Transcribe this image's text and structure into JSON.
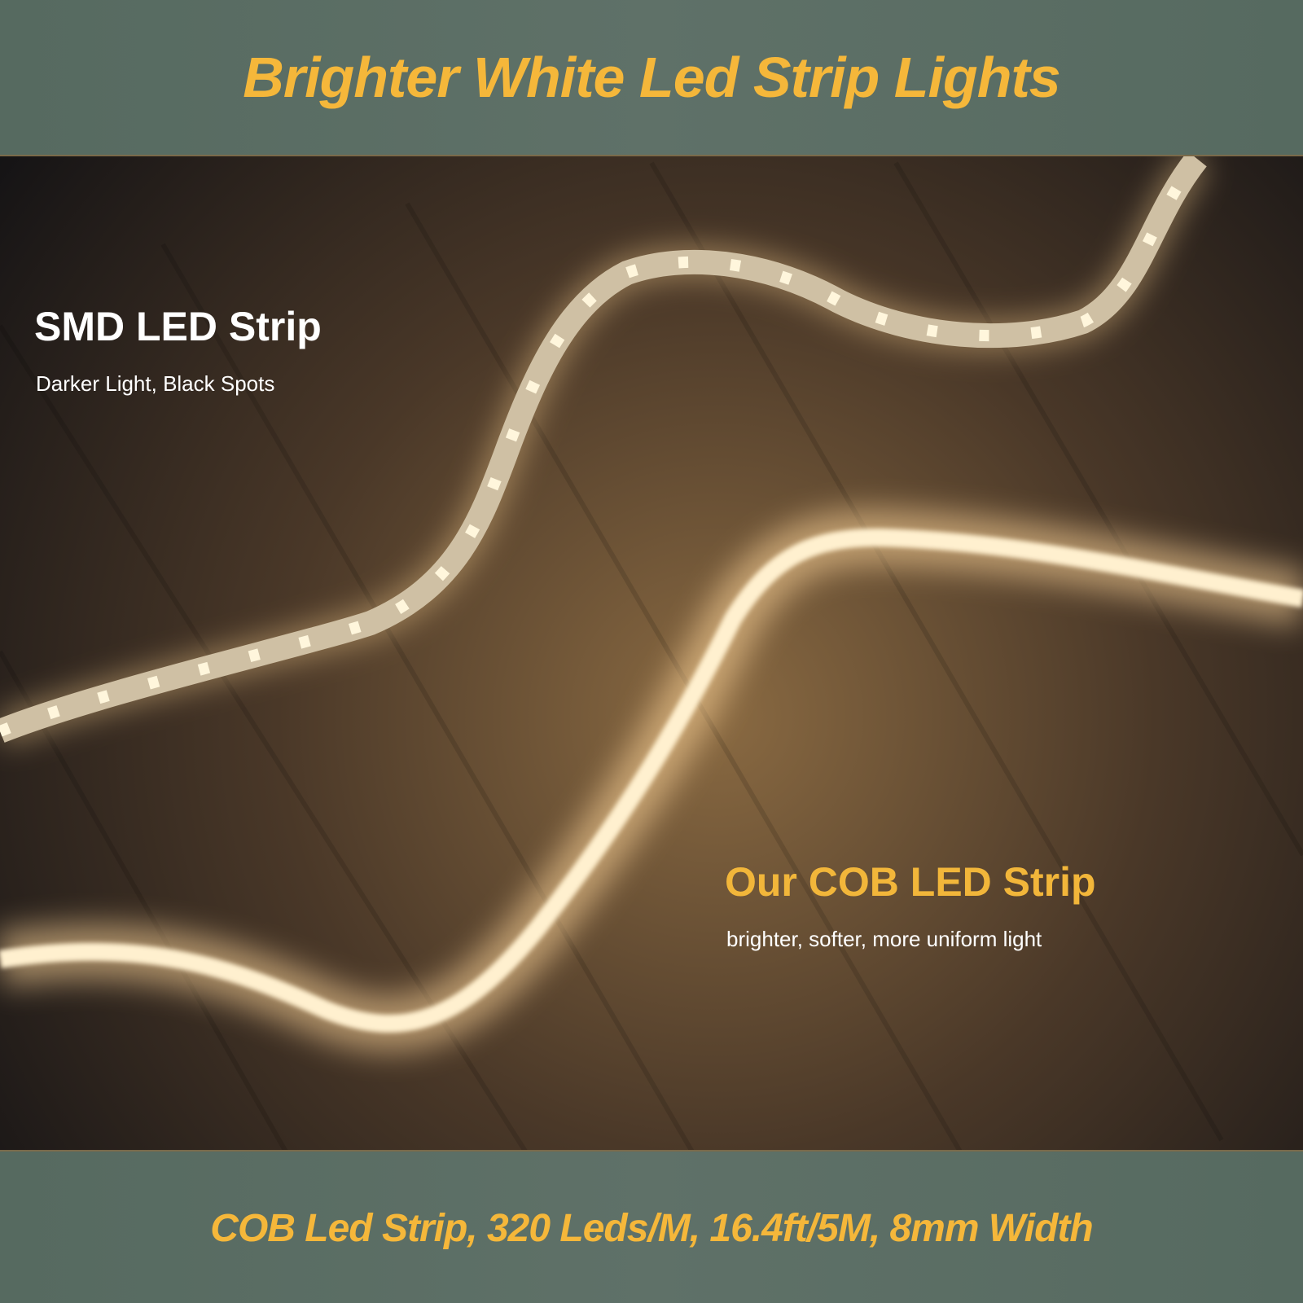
{
  "header": {
    "title": "Brighter White Led Strip Lights"
  },
  "labels": [
    {
      "title": "SMD LED Strip",
      "subtitle": "Darker Light, Black Spots"
    },
    {
      "title": "Our COB LED Strip",
      "subtitle": "brighter, softer, more uniform light"
    }
  ],
  "footer": {
    "text": "COB Led Strip, 320 Leds/M, 16.4ft/5M, 8mm Width"
  }
}
